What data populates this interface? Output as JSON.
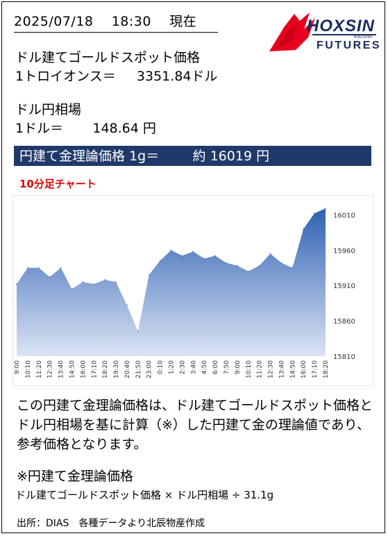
{
  "header": {
    "date": "2025/07/18",
    "time": "18:30",
    "status": "現在"
  },
  "logo": {
    "line1": "HOXSIN",
    "line2": "FUTURES",
    "small": "HOKUSHIN",
    "accent": "#e8001c",
    "navy": "#1a2a5e"
  },
  "gold": {
    "label": "ドル建てゴールドスポット価格",
    "unit_prefix": "1トロイオンス＝",
    "value": "3351.84",
    "currency": "ドル"
  },
  "fx": {
    "label": "ドル円相場",
    "unit_prefix": "1ドル＝",
    "value": "148.64",
    "currency": "円"
  },
  "banner": {
    "label": "円建て金理論価格 1g＝",
    "approx": "約",
    "value": "16019",
    "currency": "円",
    "bg": "#1f3a6a"
  },
  "chart_title": "10分足チャート",
  "chart_data": {
    "type": "area",
    "x": [
      "9:00",
      "10:10",
      "11:20",
      "12:30",
      "13:40",
      "14:50",
      "16:00",
      "17:10",
      "18:20",
      "19:30",
      "20:40",
      "21:50",
      "23:00",
      "0:10",
      "1:20",
      "2:30",
      "3:40",
      "4:50",
      "6:00",
      "7:50",
      "9:00",
      "10:10",
      "11:20",
      "12:30",
      "13:40",
      "14:50",
      "16:00",
      "17:10",
      "18:20"
    ],
    "values": [
      15912,
      15935,
      15935,
      15922,
      15935,
      15905,
      15915,
      15912,
      15918,
      15915,
      15882,
      15845,
      15925,
      15945,
      15960,
      15952,
      15958,
      15948,
      15952,
      15942,
      15938,
      15930,
      15938,
      15955,
      15942,
      15935,
      15990,
      16012,
      16019
    ],
    "ylim": [
      15810,
      16030
    ],
    "yticks": [
      15810,
      15860,
      15910,
      15960,
      16010
    ],
    "grid": false,
    "color_top": "#2f61b2",
    "color_bottom": "#dbe4f4"
  },
  "explanation": "この円建て金理論価格は、ドル建てゴールドスポット価格とドル円相場を基に計算（※）した円建て金の理論値であり、参考価格となります。",
  "formula_title": "※円建て金理論価格",
  "formula": "ドル建てゴールドスポット価格 × ドル円相場 ÷ 31.1g",
  "source": "出所：DIAS　各種データより北辰物産作成"
}
